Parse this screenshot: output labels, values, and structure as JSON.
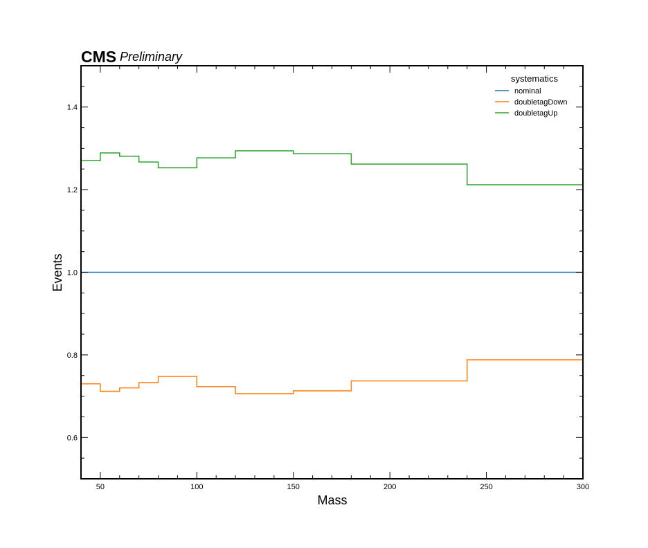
{
  "header": {
    "experiment": "CMS",
    "status": "Preliminary"
  },
  "chart_data": {
    "type": "line",
    "step": true,
    "xlabel": "Mass",
    "ylabel": "Events",
    "xlim": [
      40,
      300
    ],
    "ylim": [
      0.5,
      1.5
    ],
    "x_ticks": [
      50,
      100,
      150,
      200,
      250,
      300
    ],
    "y_ticks": [
      0.6,
      0.8,
      1.0,
      1.2,
      1.4
    ],
    "x_tick_labels": [
      "50",
      "100",
      "150",
      "200",
      "250",
      "300"
    ],
    "y_tick_labels": [
      "0.6",
      "0.8",
      "1.0",
      "1.2",
      "1.4"
    ],
    "bin_edges": [
      40,
      50,
      60,
      70,
      80,
      100,
      120,
      150,
      180,
      240,
      300
    ],
    "grid": false,
    "legend": {
      "title": "systematics",
      "position": "top-right"
    },
    "series": [
      {
        "name": "nominal",
        "color": "#1f77b4",
        "values": [
          1.0,
          1.0,
          1.0,
          1.0,
          1.0,
          1.0,
          1.0,
          1.0,
          1.0,
          1.0
        ]
      },
      {
        "name": "doubletagDown",
        "color": "#ff7f0e",
        "values": [
          0.73,
          0.712,
          0.72,
          0.733,
          0.748,
          0.723,
          0.706,
          0.713,
          0.737,
          0.788
        ]
      },
      {
        "name": "doubletagUp",
        "color": "#2ca02c",
        "values": [
          1.27,
          1.289,
          1.281,
          1.267,
          1.253,
          1.277,
          1.294,
          1.287,
          1.262,
          1.212
        ]
      }
    ]
  }
}
